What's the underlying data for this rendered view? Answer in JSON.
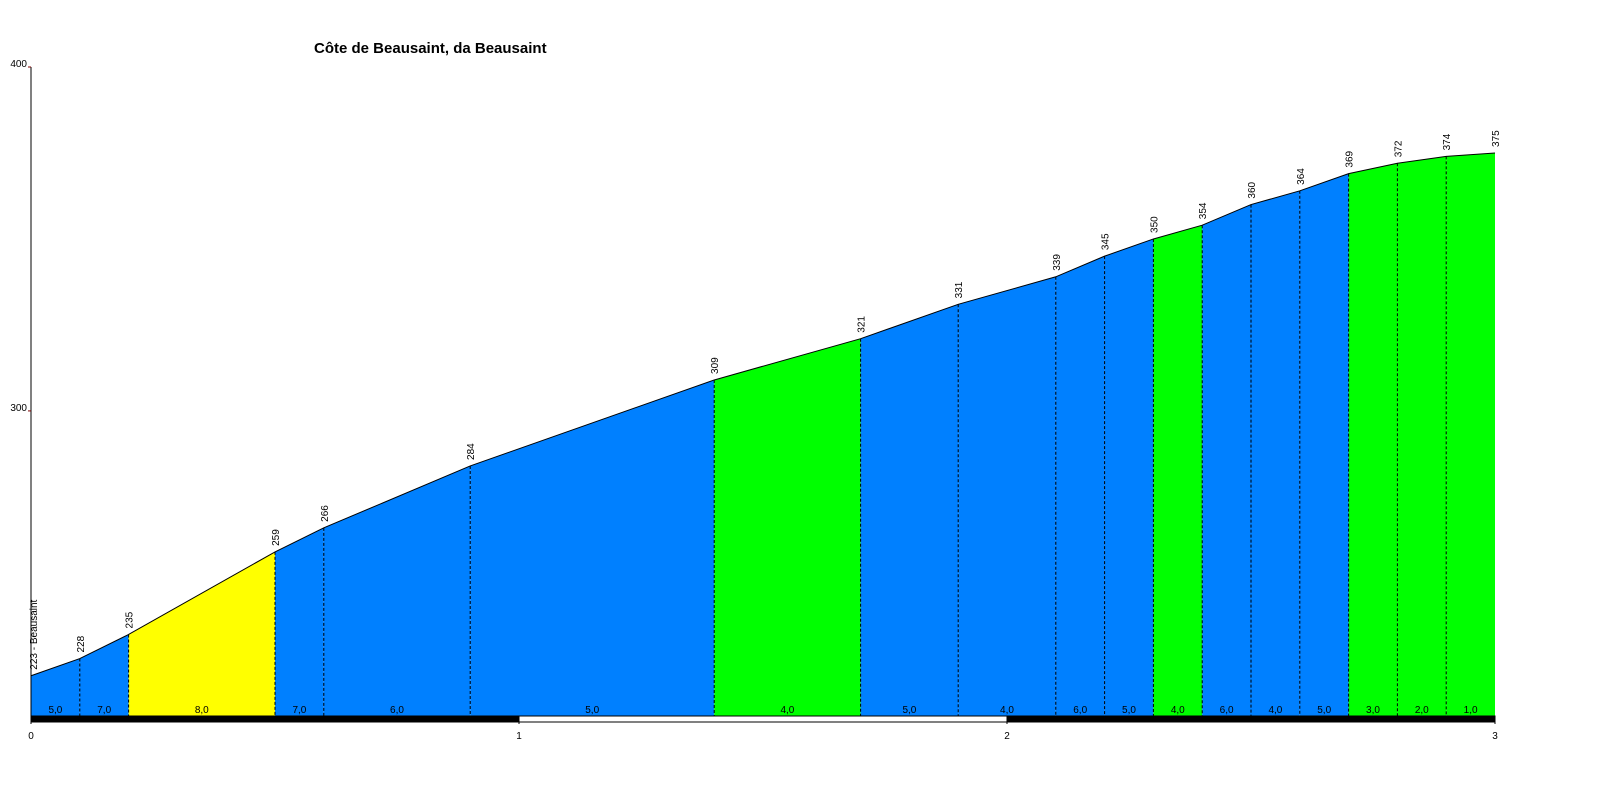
{
  "chart_data": {
    "type": "elevation-profile",
    "title": "Côte de Beausaint, da Beausaint",
    "x": [
      0,
      0.1,
      0.2,
      0.5,
      0.6,
      0.9,
      1.4,
      1.7,
      1.9,
      2.1,
      2.2,
      2.3,
      2.4,
      2.5,
      2.6,
      2.7,
      2.8,
      2.9,
      3.0
    ],
    "values": [
      223,
      228,
      235,
      259,
      266,
      284,
      309,
      321,
      331,
      339,
      345,
      350,
      354,
      360,
      364,
      369,
      372,
      374,
      375
    ],
    "value_labels": [
      "223 - Beausaint",
      "228",
      "235",
      "259",
      "266",
      "284",
      "309",
      "321",
      "331",
      "339",
      "345",
      "350",
      "354",
      "360",
      "364",
      "369",
      "372",
      "374",
      "375"
    ],
    "segments": {
      "values": [
        5.0,
        7.0,
        8.0,
        7.0,
        6.0,
        5.0,
        4.0,
        5.0,
        4.0,
        6.0,
        5.0,
        4.0,
        6.0,
        4.0,
        5.0,
        3.0,
        2.0,
        1.0
      ],
      "value_labels": [
        "5,0",
        "7,0",
        "8,0",
        "7,0",
        "6,0",
        "5,0",
        "4,0",
        "5,0",
        "4,0",
        "6,0",
        "5,0",
        "4,0",
        "6,0",
        "4,0",
        "5,0",
        "3,0",
        "2,0",
        "1,0"
      ],
      "colors": [
        "#0080ff",
        "#0080ff",
        "#ffff00",
        "#0080ff",
        "#0080ff",
        "#0080ff",
        "#00ff00",
        "#0080ff",
        "#0080ff",
        "#0080ff",
        "#0080ff",
        "#00ff00",
        "#0080ff",
        "#0080ff",
        "#0080ff",
        "#00ff00",
        "#00ff00",
        "#00ff00"
      ]
    },
    "xlim": [
      0,
      3
    ],
    "xticks": [
      0,
      1,
      2,
      3
    ],
    "ylim": [
      211,
      400
    ],
    "yticks": [
      300,
      400
    ]
  }
}
